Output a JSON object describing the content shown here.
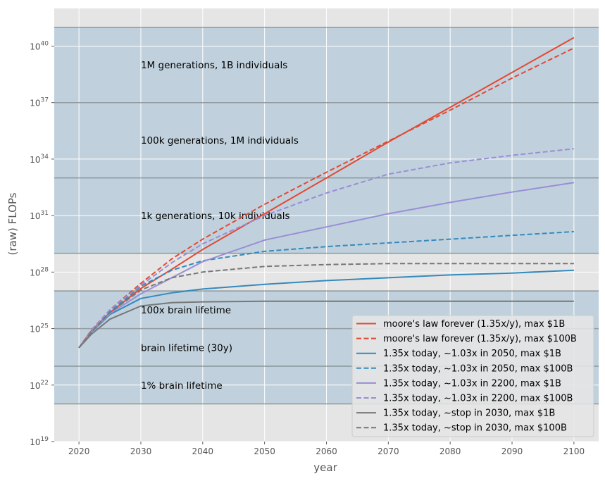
{
  "chart_data": {
    "type": "line",
    "title": "",
    "xlabel": "year",
    "ylabel": "(raw) FLOPs",
    "xlim": [
      2016,
      2104
    ],
    "ylim_log10": [
      19,
      42
    ],
    "yscale": "log",
    "grid": true,
    "legend_position": "bottom-right",
    "x_ticks": [
      2020,
      2030,
      2040,
      2050,
      2060,
      2070,
      2080,
      2090,
      2100
    ],
    "y_ticks": [
      {
        "exp": 19,
        "label_base": "10",
        "label_exp": "19"
      },
      {
        "exp": 22,
        "label_base": "10",
        "label_exp": "22"
      },
      {
        "exp": 25,
        "label_base": "10",
        "label_exp": "25"
      },
      {
        "exp": 28,
        "label_base": "10",
        "label_exp": "28"
      },
      {
        "exp": 31,
        "label_base": "10",
        "label_exp": "31"
      },
      {
        "exp": 34,
        "label_base": "10",
        "label_exp": "34"
      },
      {
        "exp": 37,
        "label_base": "10",
        "label_exp": "37"
      },
      {
        "exp": 40,
        "label_base": "10",
        "label_exp": "40"
      }
    ],
    "bands": [
      {
        "label": "1M generations, 1B individuals",
        "low": 37,
        "high": 41
      },
      {
        "label": "100k generations, 1M individuals",
        "low": 33,
        "high": 37
      },
      {
        "label": "1k generations, 10k individuals",
        "low": 29,
        "high": 33
      },
      {
        "label": "100x brain lifetime",
        "low": 25,
        "high": 27
      },
      {
        "label": "brain lifetime (30y)",
        "low": 23,
        "high": 25
      },
      {
        "label": "1% brain lifetime",
        "low": 21,
        "high": 23
      }
    ],
    "band_label_x": 2030,
    "band_color": "#a9c5d8",
    "x": [
      2020,
      2022,
      2025,
      2030,
      2035,
      2040,
      2050,
      2060,
      2070,
      2080,
      2090,
      2100
    ],
    "series": [
      {
        "name": "moore's law forever (1.35x/y), max $1B",
        "color": "#e24a33",
        "dash": false,
        "values": [
          23.98,
          24.88,
          25.85,
          27.13,
          28.15,
          29.2,
          31.1,
          33.0,
          34.9,
          36.75,
          38.6,
          40.45
        ]
      },
      {
        "name": "moore's law forever (1.35x/y), max $100B",
        "color": "#e24a33",
        "dash": true,
        "values": [
          23.98,
          24.92,
          26.0,
          27.4,
          28.7,
          29.75,
          31.6,
          33.3,
          34.95,
          36.6,
          38.3,
          39.9
        ]
      },
      {
        "name": "1.35x today, ~1.03x in 2050, max $1B",
        "color": "#348abd",
        "dash": false,
        "values": [
          23.98,
          24.8,
          25.75,
          26.6,
          26.9,
          27.1,
          27.35,
          27.55,
          27.7,
          27.85,
          27.95,
          28.1
        ]
      },
      {
        "name": "1.35x today, ~1.03x in 2050, max $100B",
        "color": "#348abd",
        "dash": true,
        "values": [
          23.98,
          24.85,
          25.9,
          27.25,
          28.1,
          28.6,
          29.1,
          29.35,
          29.55,
          29.75,
          29.95,
          30.15
        ]
      },
      {
        "name": "1.35x today, ~1.03x in 2200, max $1B",
        "color": "#988ed5",
        "dash": false,
        "values": [
          23.98,
          24.82,
          25.8,
          26.85,
          27.7,
          28.55,
          29.7,
          30.4,
          31.1,
          31.7,
          32.25,
          32.75
        ]
      },
      {
        "name": "1.35x today, ~1.03x in 2200, max $100B",
        "color": "#988ed5",
        "dash": true,
        "values": [
          23.98,
          24.9,
          26.0,
          27.3,
          28.5,
          29.5,
          31.0,
          32.2,
          33.2,
          33.8,
          34.2,
          34.55
        ]
      },
      {
        "name": "1.35x today, ~stop in 2030, max $1B",
        "color": "#777777",
        "dash": false,
        "values": [
          23.98,
          24.7,
          25.5,
          26.2,
          26.38,
          26.42,
          26.45,
          26.45,
          26.45,
          26.45,
          26.45,
          26.45
        ]
      },
      {
        "name": "1.35x today, ~stop in 2030, max $100B",
        "color": "#777777",
        "dash": true,
        "values": [
          23.98,
          24.82,
          25.85,
          27.05,
          27.7,
          28.0,
          28.3,
          28.4,
          28.45,
          28.45,
          28.45,
          28.45
        ]
      }
    ]
  }
}
